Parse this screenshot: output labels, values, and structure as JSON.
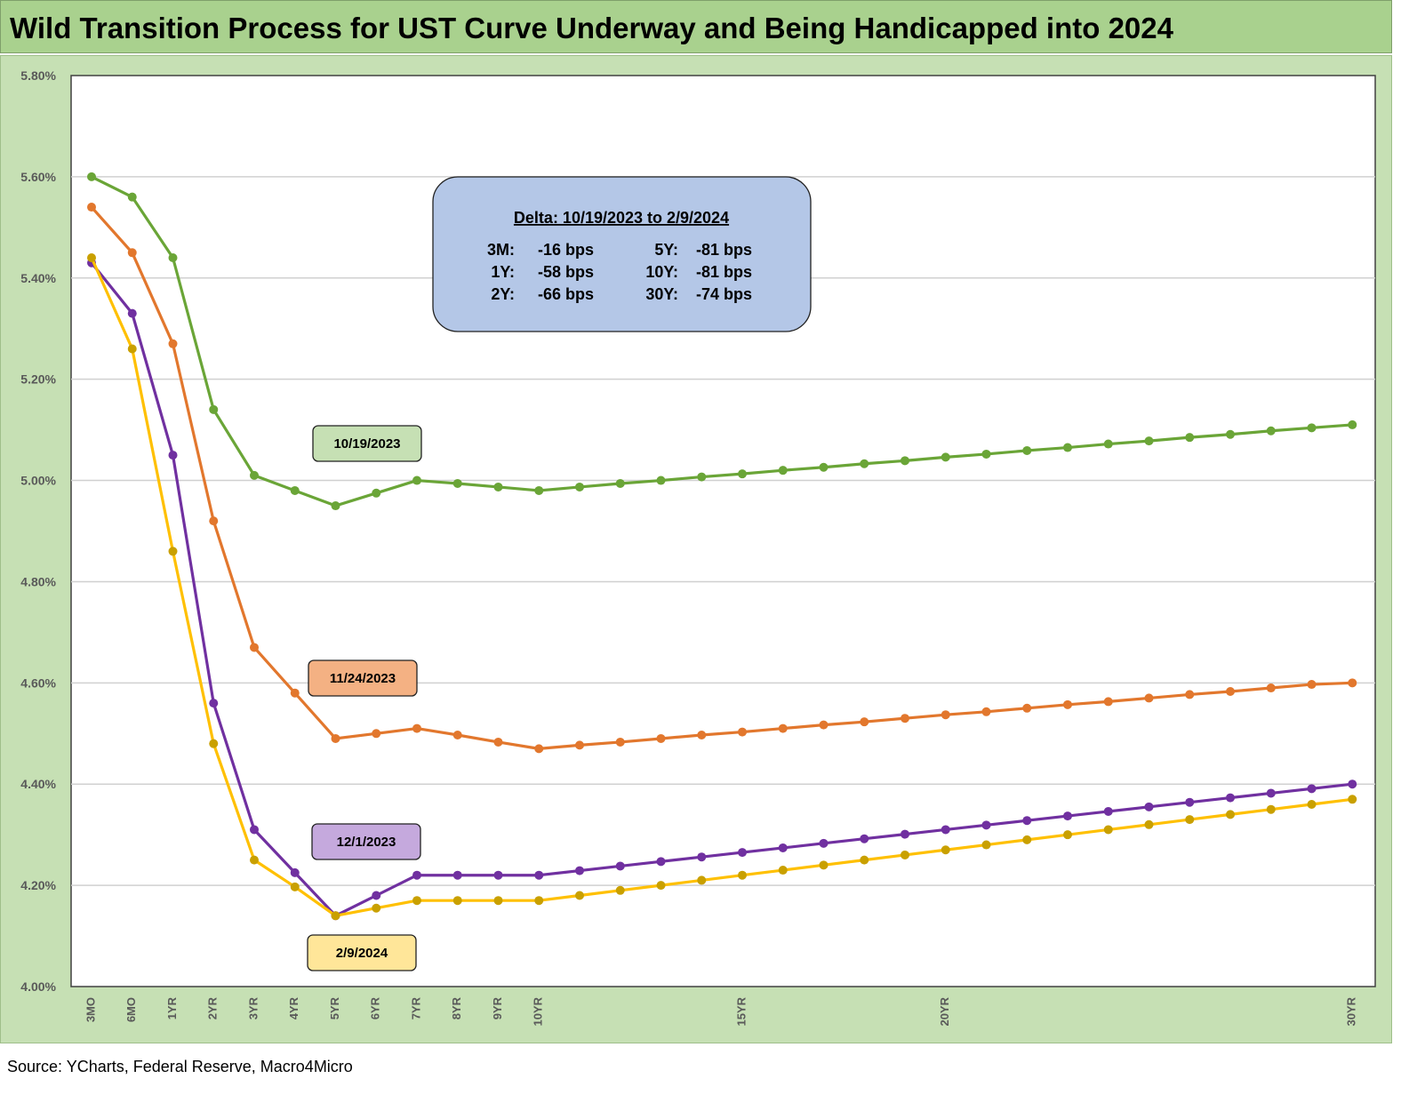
{
  "title": "Wild Transition Process for UST Curve Underway and Being Handicapped into 2024",
  "source": "Source: YCharts, Federal Reserve, Macro4Micro",
  "chart_data": {
    "type": "line",
    "title": "",
    "xlabel": "",
    "ylabel": "",
    "ylim": [
      4.0,
      5.8
    ],
    "y_ticks": [
      "4.00%",
      "4.20%",
      "4.40%",
      "4.60%",
      "4.80%",
      "5.00%",
      "5.20%",
      "5.40%",
      "5.60%",
      "5.80%"
    ],
    "y_tick_values": [
      4.0,
      4.2,
      4.4,
      4.6,
      4.8,
      5.0,
      5.2,
      5.4,
      5.6,
      5.8
    ],
    "x_categories": [
      "3MO",
      "6MO",
      "1YR",
      "2YR",
      "3YR",
      "4YR",
      "5YR",
      "6YR",
      "7YR",
      "8YR",
      "9YR",
      "10YR",
      "11YR",
      "12YR",
      "13YR",
      "14YR",
      "15YR",
      "16YR",
      "17YR",
      "18YR",
      "19YR",
      "20YR",
      "21YR",
      "22YR",
      "23YR",
      "24YR",
      "25YR",
      "26YR",
      "27YR",
      "28YR",
      "29YR",
      "30YR"
    ],
    "x_tick_labels": [
      "3MO",
      "6MO",
      "1YR",
      "2YR",
      "3YR",
      "4YR",
      "5YR",
      "6YR",
      "7YR",
      "8YR",
      "9YR",
      "10YR",
      "",
      "",
      "",
      "",
      "15YR",
      "",
      "",
      "",
      "",
      "20YR",
      "",
      "",
      "",
      "",
      "",
      "",
      "",
      "",
      "",
      "30YR"
    ],
    "grid": true,
    "legend": "none",
    "series": [
      {
        "name": "10/19/2023",
        "color": "#6aa537",
        "values": [
          5.6,
          5.56,
          5.44,
          5.14,
          5.01,
          4.98,
          4.95,
          4.975,
          5.0,
          4.994,
          4.987,
          4.98,
          4.987,
          4.994,
          5.0,
          5.007,
          5.013,
          5.02,
          5.026,
          5.033,
          5.039,
          5.046,
          5.052,
          5.059,
          5.065,
          5.072,
          5.078,
          5.085,
          5.091,
          5.098,
          5.104,
          5.11
        ]
      },
      {
        "name": "11/24/2023",
        "color": "#e2772d",
        "values": [
          5.54,
          5.45,
          5.27,
          4.92,
          4.67,
          4.58,
          4.49,
          4.5,
          4.51,
          4.497,
          4.483,
          4.47,
          4.477,
          4.483,
          4.49,
          4.497,
          4.503,
          4.51,
          4.517,
          4.523,
          4.53,
          4.537,
          4.543,
          4.55,
          4.557,
          4.563,
          4.57,
          4.577,
          4.583,
          4.59,
          4.597,
          4.6
        ]
      },
      {
        "name": "12/1/2023",
        "color": "#7030a0",
        "values": [
          5.43,
          5.33,
          5.05,
          4.56,
          4.31,
          4.225,
          4.14,
          4.18,
          4.22,
          4.22,
          4.22,
          4.22,
          4.229,
          4.238,
          4.247,
          4.256,
          4.265,
          4.274,
          4.283,
          4.292,
          4.301,
          4.31,
          4.319,
          4.328,
          4.337,
          4.346,
          4.355,
          4.364,
          4.373,
          4.382,
          4.391,
          4.4
        ]
      },
      {
        "name": "2/9/2024",
        "color": "#ffc000",
        "marker_color": "#c9a000",
        "values": [
          5.44,
          5.26,
          4.86,
          4.48,
          4.25,
          4.197,
          4.14,
          4.155,
          4.17,
          4.17,
          4.17,
          4.17,
          4.18,
          4.19,
          4.2,
          4.21,
          4.22,
          4.23,
          4.24,
          4.25,
          4.26,
          4.27,
          4.28,
          4.29,
          4.3,
          4.31,
          4.32,
          4.33,
          4.34,
          4.35,
          4.36,
          4.37
        ]
      }
    ],
    "series_labels": [
      {
        "text": "10/19/2023",
        "fill": "#c6e0b4"
      },
      {
        "text": "11/24/2023",
        "fill": "#f4b183"
      },
      {
        "text": "12/1/2023",
        "fill": "#c5a9dd"
      },
      {
        "text": "2/9/2024",
        "fill": "#ffe699"
      }
    ],
    "annotation": {
      "heading": "Delta: 10/19/2023 to 2/9/2024",
      "fill": "#b4c7e7",
      "rows": [
        {
          "k1": "3M:",
          "v1": "-16 bps",
          "k2": "5Y:",
          "v2": "-81 bps"
        },
        {
          "k1": "1Y:",
          "v1": "-58 bps",
          "k2": "10Y:",
          "v2": "-81 bps"
        },
        {
          "k1": "2Y:",
          "v1": "-66 bps",
          "k2": "30Y:",
          "v2": "-74 bps"
        }
      ]
    }
  }
}
